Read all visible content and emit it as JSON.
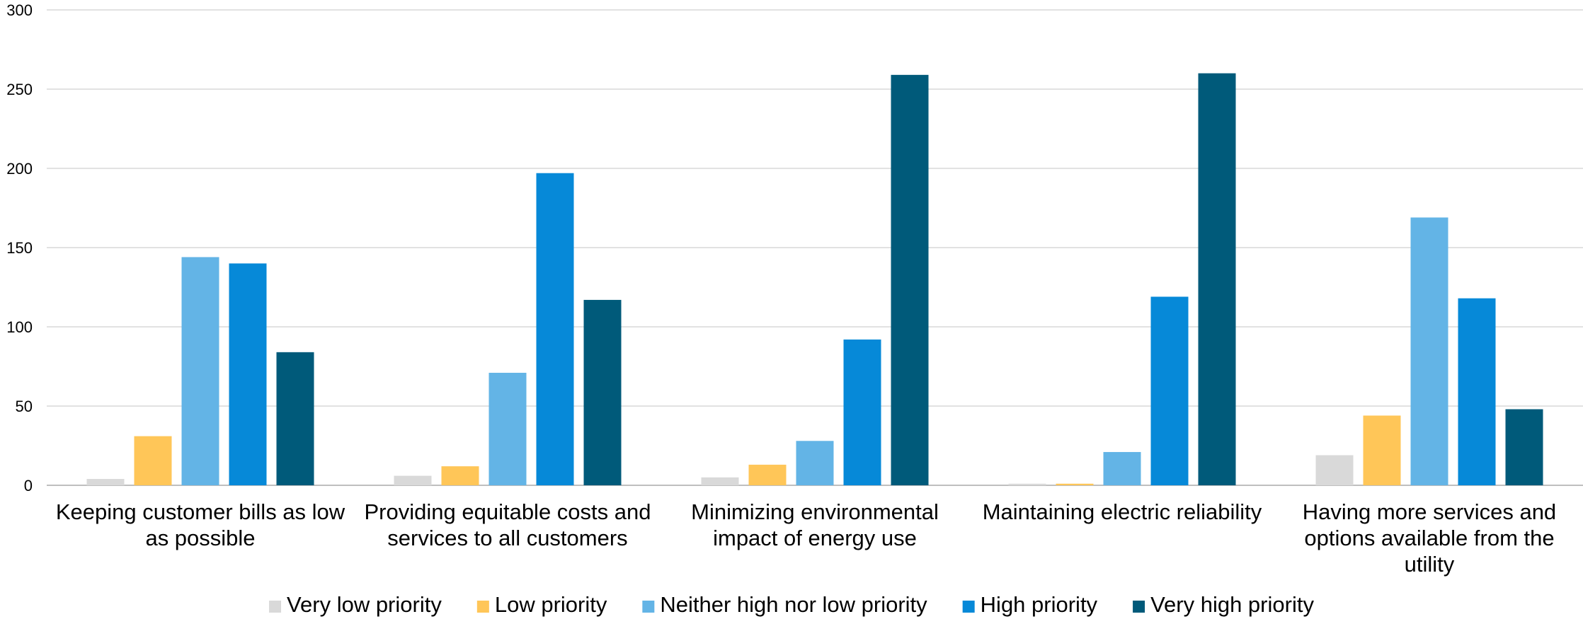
{
  "chart_data": {
    "type": "bar",
    "categories": [
      [
        "Keeping customer bills as low",
        "as possible"
      ],
      [
        "Providing equitable costs and",
        "services to all customers"
      ],
      [
        "Minimizing environmental",
        "impact of energy use"
      ],
      [
        "Maintaining electric reliability"
      ],
      [
        "Having more services and",
        "options available from the",
        "utility"
      ]
    ],
    "series": [
      {
        "name": "Very low priority",
        "color": "#d9d9d9",
        "values": [
          4,
          6,
          5,
          1,
          19
        ]
      },
      {
        "name": "Low priority",
        "color": "#ffc658",
        "values": [
          31,
          12,
          13,
          1,
          44
        ]
      },
      {
        "name": "Neither high nor low priority",
        "color": "#63b4e6",
        "values": [
          144,
          71,
          28,
          21,
          169
        ]
      },
      {
        "name": "High priority",
        "color": "#0689d8",
        "values": [
          140,
          197,
          92,
          119,
          118
        ]
      },
      {
        "name": "Very high priority",
        "color": "#005a7a",
        "values": [
          84,
          117,
          259,
          260,
          48
        ]
      }
    ],
    "ylim": [
      0,
      300
    ],
    "yticks": [
      0,
      50,
      100,
      150,
      200,
      250,
      300
    ],
    "grid": true,
    "legend_position": "bottom",
    "title": "",
    "xlabel": "",
    "ylabel": ""
  }
}
